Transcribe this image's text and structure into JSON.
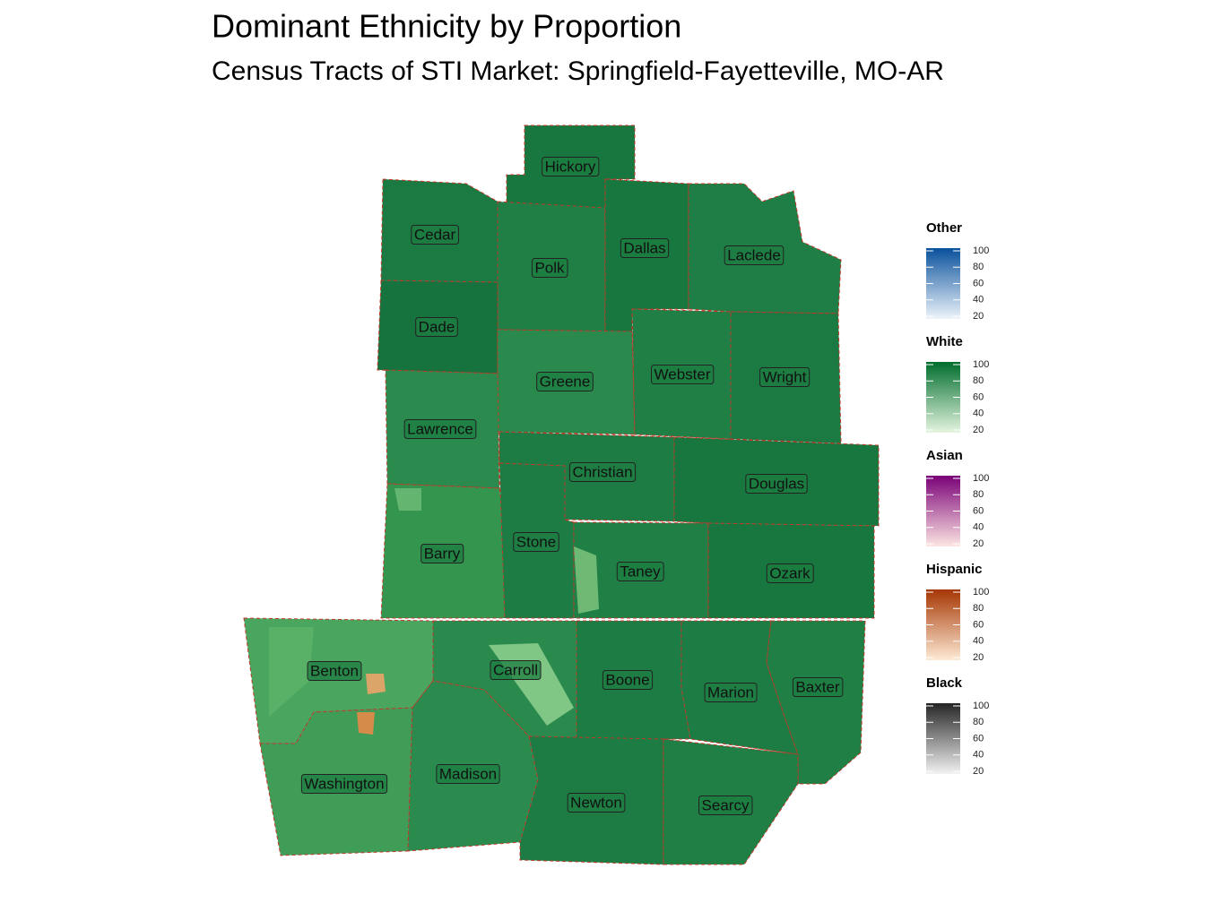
{
  "title": "Dominant Ethnicity by Proportion",
  "subtitle": "Census Tracts of STI Market: Springfield-Fayetteville, MO-AR",
  "counties": [
    "Hickory",
    "Cedar",
    "Polk",
    "Dallas",
    "Laclede",
    "Dade",
    "Greene",
    "Webster",
    "Wright",
    "Lawrence",
    "Christian",
    "Douglas",
    "Barry",
    "Stone",
    "Taney",
    "Ozark",
    "Benton",
    "Carroll",
    "Boone",
    "Marion",
    "Baxter",
    "Washington",
    "Madison",
    "Newton",
    "Searcy"
  ],
  "legends": [
    {
      "title": "Other",
      "colors": [
        "#eef4fb",
        "#08519c"
      ],
      "ticks": [
        100,
        80,
        60,
        40,
        20
      ]
    },
    {
      "title": "White",
      "colors": [
        "#e5f5e0",
        "#006d2c"
      ],
      "ticks": [
        100,
        80,
        60,
        40,
        20
      ]
    },
    {
      "title": "Asian",
      "colors": [
        "#fde6e3",
        "#7a0177"
      ],
      "ticks": [
        100,
        80,
        60,
        40,
        20
      ]
    },
    {
      "title": "Hispanic",
      "colors": [
        "#feead5",
        "#a63603"
      ],
      "ticks": [
        100,
        80,
        60,
        40,
        20
      ]
    },
    {
      "title": "Black",
      "colors": [
        "#f3f3f3",
        "#252525"
      ],
      "ticks": [
        100,
        80,
        60,
        40,
        20
      ]
    }
  ]
}
